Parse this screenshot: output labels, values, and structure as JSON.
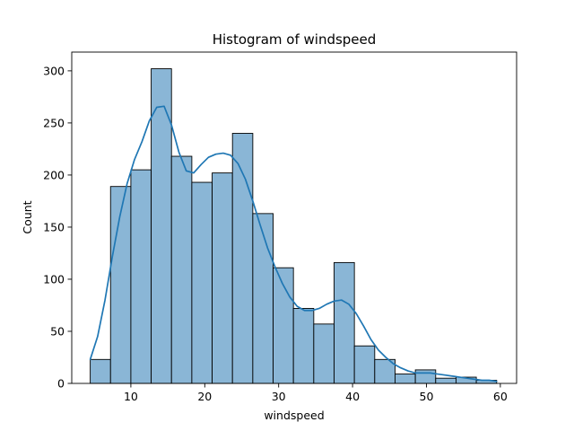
{
  "chart_data": {
    "type": "bar",
    "title": "Histogram of windspeed",
    "xlabel": "windspeed",
    "ylabel": "Count",
    "xlim": [
      2,
      62.2
    ],
    "ylim": [
      0,
      318
    ],
    "xticks": [
      10,
      20,
      30,
      40,
      50,
      60
    ],
    "yticks": [
      0,
      50,
      100,
      150,
      200,
      250,
      300
    ],
    "grid": false,
    "bar_color": "#8AB6D6",
    "bar_edge_color": "#000000",
    "kde_color": "#1F77B4",
    "bins": [
      {
        "x0": 4.5,
        "x1": 7.25,
        "count": 23
      },
      {
        "x0": 7.25,
        "x1": 10.0,
        "count": 189
      },
      {
        "x0": 10.0,
        "x1": 12.75,
        "count": 205
      },
      {
        "x0": 12.75,
        "x1": 15.5,
        "count": 302
      },
      {
        "x0": 15.5,
        "x1": 18.25,
        "count": 218
      },
      {
        "x0": 18.25,
        "x1": 21.0,
        "count": 193
      },
      {
        "x0": 21.0,
        "x1": 23.75,
        "count": 202
      },
      {
        "x0": 23.75,
        "x1": 26.5,
        "count": 240
      },
      {
        "x0": 26.5,
        "x1": 29.25,
        "count": 163
      },
      {
        "x0": 29.25,
        "x1": 32.0,
        "count": 111
      },
      {
        "x0": 32.0,
        "x1": 34.75,
        "count": 72
      },
      {
        "x0": 34.75,
        "x1": 37.5,
        "count": 57
      },
      {
        "x0": 37.5,
        "x1": 40.25,
        "count": 116
      },
      {
        "x0": 40.25,
        "x1": 43.0,
        "count": 36
      },
      {
        "x0": 43.0,
        "x1": 45.75,
        "count": 23
      },
      {
        "x0": 45.75,
        "x1": 48.5,
        "count": 9
      },
      {
        "x0": 48.5,
        "x1": 51.25,
        "count": 13
      },
      {
        "x0": 51.25,
        "x1": 54.0,
        "count": 5
      },
      {
        "x0": 54.0,
        "x1": 56.75,
        "count": 6
      },
      {
        "x0": 56.75,
        "x1": 59.5,
        "count": 3
      }
    ],
    "kde": {
      "x": [
        4.5,
        5.5,
        6.5,
        7.5,
        8.5,
        9.5,
        10.5,
        11.5,
        12.5,
        13.5,
        14.5,
        15.5,
        16.5,
        17.5,
        18.5,
        19.5,
        20.5,
        21.5,
        22.5,
        23.5,
        24.5,
        25.5,
        26.5,
        27.5,
        28.5,
        29.5,
        30.5,
        31.5,
        32.5,
        33.5,
        34.5,
        35.5,
        36.5,
        37.5,
        38.5,
        39.5,
        40.5,
        41.5,
        42.5,
        43.5,
        44.5,
        45.5,
        46.5,
        47.5,
        48.5,
        49.5,
        50.5,
        51.5,
        52.5,
        53.5,
        54.5,
        55.5,
        56.5,
        57.5,
        58.5,
        59.5
      ],
      "y": [
        23,
        45,
        80,
        122,
        160,
        192,
        215,
        232,
        252,
        265,
        266,
        248,
        222,
        204,
        202,
        210,
        217,
        220,
        221,
        219,
        211,
        196,
        175,
        152,
        130,
        112,
        96,
        83,
        74,
        70,
        70,
        72,
        76,
        79,
        80,
        76,
        67,
        55,
        42,
        32,
        25,
        19,
        15,
        12,
        10,
        10,
        10,
        9,
        8,
        7,
        6,
        5,
        4,
        3,
        3,
        2
      ]
    }
  }
}
